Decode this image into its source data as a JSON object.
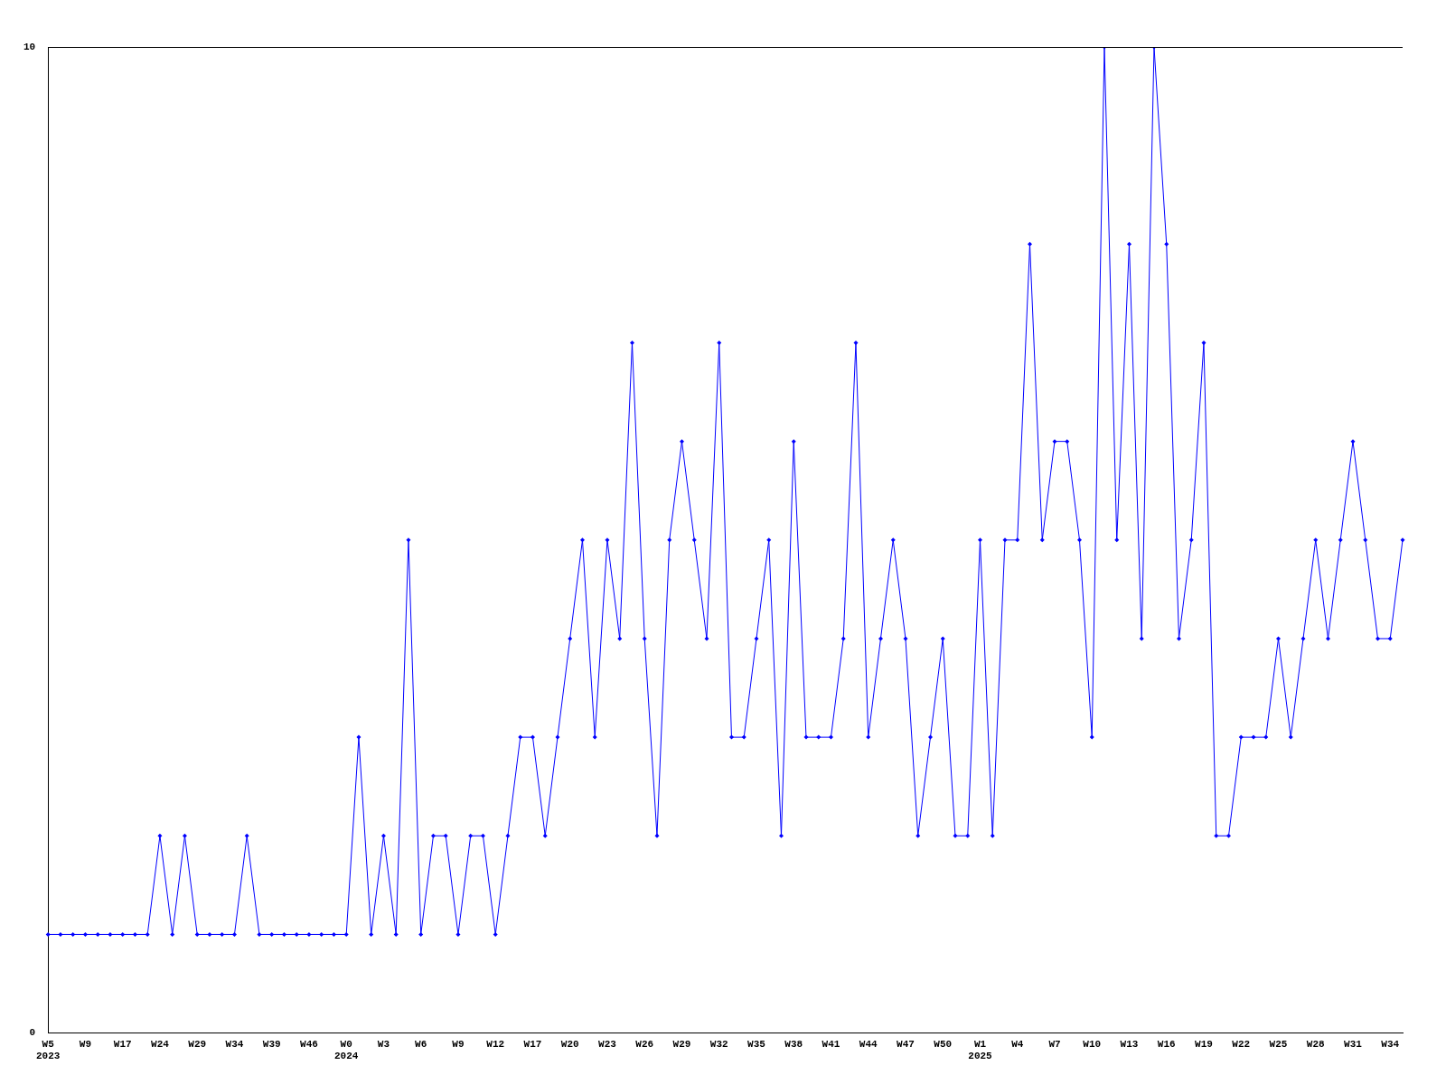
{
  "chart_data": {
    "type": "line",
    "categories": [
      "W5\n2023",
      null,
      null,
      "W9",
      null,
      null,
      "W17",
      null,
      null,
      "W24",
      null,
      null,
      "W29",
      null,
      null,
      "W34",
      null,
      null,
      "W39",
      null,
      null,
      "W46",
      null,
      null,
      "W0\n2024",
      null,
      null,
      "W3",
      null,
      null,
      "W6",
      null,
      null,
      "W9",
      null,
      null,
      "W12",
      null,
      null,
      "W17",
      null,
      null,
      "W20",
      null,
      null,
      "W23",
      null,
      null,
      "W26",
      null,
      null,
      "W29",
      null,
      null,
      "W32",
      null,
      null,
      "W35",
      null,
      null,
      "W38",
      null,
      null,
      "W41",
      null,
      null,
      "W44",
      null,
      null,
      "W47",
      null,
      null,
      "W50",
      null,
      null,
      "W1\n2025",
      null,
      null,
      "W4",
      null,
      null,
      "W7",
      null,
      null,
      "W10",
      null,
      null,
      "W13",
      null,
      null,
      "W16",
      null,
      null,
      "W19",
      null,
      null,
      "W22",
      null,
      null,
      "W25",
      null,
      null,
      "W28",
      null,
      null,
      "W31",
      null,
      null,
      "W34",
      null
    ],
    "series": [
      {
        "color": "#0000ff",
        "values": [
          1,
          1,
          1,
          1,
          1,
          1,
          1,
          1,
          1,
          2,
          1,
          2,
          1,
          1,
          1,
          1,
          2,
          1,
          1,
          1,
          1,
          1,
          1,
          1,
          1,
          3,
          1,
          2,
          1,
          5,
          1,
          2,
          2,
          1,
          2,
          2,
          1,
          2,
          3,
          3,
          2,
          3,
          4,
          5,
          3,
          5,
          4,
          7,
          4,
          2,
          5,
          6,
          5,
          4,
          7,
          3,
          3,
          4,
          5,
          2,
          6,
          3,
          3,
          3,
          4,
          7,
          3,
          4,
          5,
          4,
          2,
          3,
          4,
          2,
          2,
          5,
          2,
          5,
          5,
          8,
          5,
          6,
          6,
          5,
          3,
          10,
          5,
          8,
          4,
          10,
          8,
          4,
          5,
          7,
          2,
          2,
          3,
          3,
          3,
          4,
          3,
          4,
          5,
          4,
          5,
          6,
          5,
          4,
          4,
          5
        ]
      }
    ],
    "ylim": [
      0,
      10
    ],
    "yticks": [
      0,
      10
    ],
    "grid": false,
    "legend": false,
    "marker": "diamond",
    "line_style": "solid"
  }
}
